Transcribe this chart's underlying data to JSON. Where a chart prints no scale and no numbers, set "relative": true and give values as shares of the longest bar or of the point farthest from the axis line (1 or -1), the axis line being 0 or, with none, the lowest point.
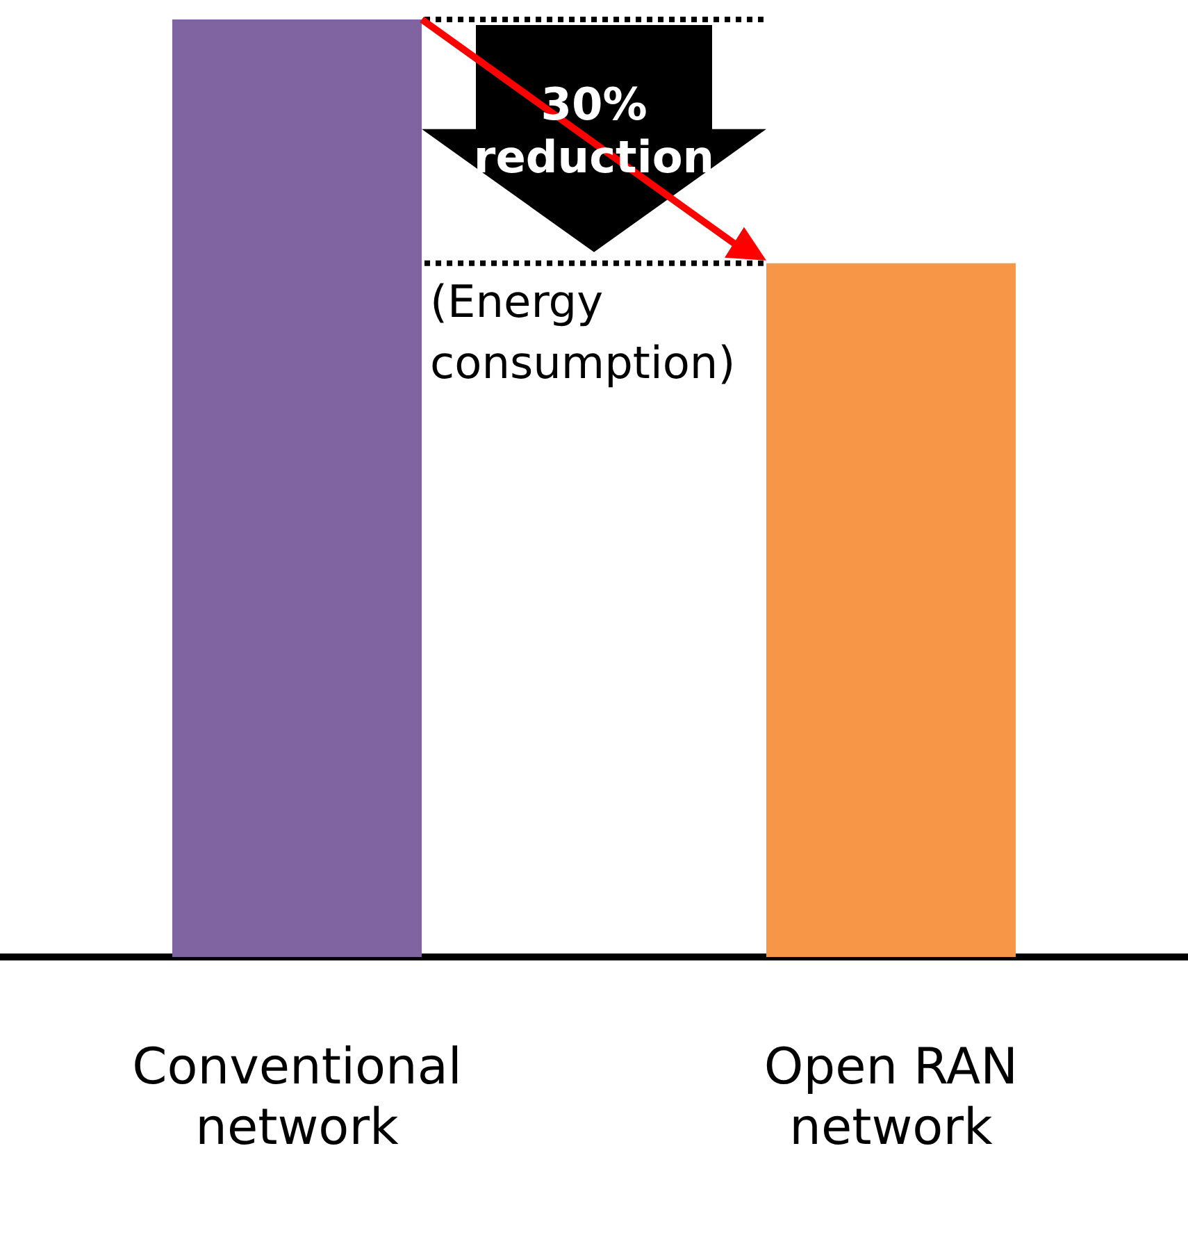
{
  "chart_data": {
    "type": "bar",
    "relative": true,
    "categories": [
      "Conventional network",
      "Open RAN network"
    ],
    "values": [
      1,
      0.74
    ],
    "colors": [
      "#8064a2",
      "#f79646"
    ],
    "ref_lines": [
      {
        "axis": "y",
        "value": 1,
        "line_style": "dotted",
        "color": "#000000"
      },
      {
        "axis": "y",
        "value": 0.74,
        "line_style": "dotted",
        "color": "#000000"
      }
    ],
    "annotations": [
      "30% reduction",
      "(Energy consumption)"
    ],
    "grid": false,
    "legend": false
  }
}
